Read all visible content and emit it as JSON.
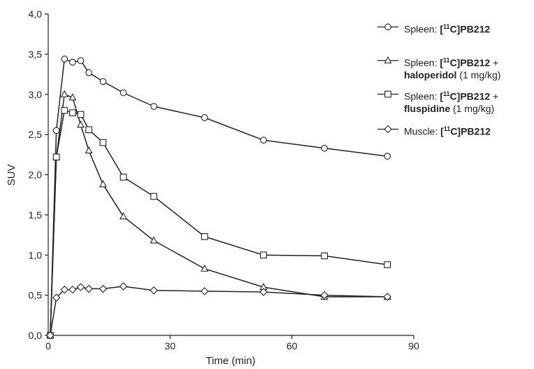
{
  "chart_data": {
    "type": "line",
    "xlabel": "Time (min)",
    "ylabel": "SUV",
    "xlim": [
      0,
      90
    ],
    "ylim": [
      0,
      4.0
    ],
    "x_ticks": [
      "0",
      "30",
      "60",
      "90"
    ],
    "y_ticks": [
      "0,0",
      "0,5",
      "1,0",
      "1,5",
      "2,0",
      "2,5",
      "3,0",
      "3,5",
      "4,0"
    ],
    "grid": false,
    "legend_position": "right",
    "series": [
      {
        "name_parts": [
          "Spleen: ",
          "[",
          "11",
          "C]PB212",
          "",
          ""
        ],
        "marker": "circle",
        "x": [
          0.5,
          2,
          4,
          6,
          8,
          10,
          13.5,
          18.5,
          26,
          38.5,
          53,
          68,
          83.5
        ],
        "y": [
          0.0,
          2.55,
          3.44,
          3.4,
          3.42,
          3.27,
          3.16,
          3.02,
          2.85,
          2.71,
          2.43,
          2.33,
          2.23
        ]
      },
      {
        "name_parts": [
          "Spleen: ",
          "[",
          "11",
          "C]PB212",
          " +",
          "haloperidol",
          " (1 mg/kg)"
        ],
        "marker": "triangle",
        "x": [
          0.5,
          2,
          4,
          6,
          8,
          10,
          13.5,
          18.5,
          26,
          38.5,
          53,
          68,
          83.5
        ],
        "y": [
          0.0,
          2.22,
          3.0,
          2.96,
          2.62,
          2.3,
          1.88,
          1.48,
          1.18,
          0.83,
          0.6,
          0.48,
          0.48
        ]
      },
      {
        "name_parts": [
          "Spleen: ",
          "[",
          "11",
          "C]PB212",
          " +",
          "fluspidine",
          " (1 mg/kg)"
        ],
        "marker": "square",
        "x": [
          0.5,
          2,
          4,
          6,
          8,
          10,
          13.5,
          18.5,
          26,
          38.5,
          53,
          68,
          83.5
        ],
        "y": [
          0.0,
          2.22,
          2.8,
          2.77,
          2.75,
          2.56,
          2.4,
          1.97,
          1.73,
          1.23,
          1.0,
          0.99,
          0.88
        ]
      },
      {
        "name_parts": [
          "Muscle: ",
          "[",
          "11",
          "C]PB212",
          "",
          ""
        ],
        "marker": "diamond",
        "x": [
          0.5,
          2,
          4,
          6,
          8,
          10,
          13.5,
          18.5,
          26,
          38.5,
          53,
          68,
          83.5
        ],
        "y": [
          0.0,
          0.47,
          0.57,
          0.57,
          0.6,
          0.58,
          0.58,
          0.61,
          0.56,
          0.55,
          0.54,
          0.5,
          0.48
        ]
      }
    ]
  }
}
